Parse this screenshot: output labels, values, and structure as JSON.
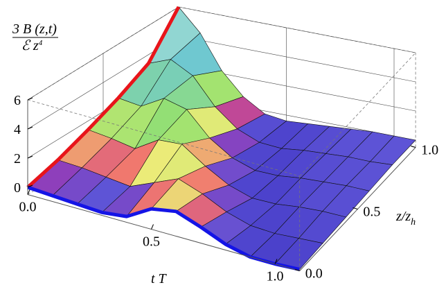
{
  "chart_data": {
    "type": "surface",
    "x": [
      0,
      0.1,
      0.2,
      0.3,
      0.4,
      0.5,
      0.6,
      0.7,
      0.8,
      0.9,
      1.0,
      1.1
    ],
    "y": [
      0,
      0.2,
      0.4,
      0.6,
      0.8,
      1.0
    ],
    "values": [
      [
        0,
        -0.1,
        -0.2,
        -0.3,
        -0.1,
        0.9,
        1.2,
        0.6,
        -0.1,
        -0.5,
        -0.5,
        -0.4
      ],
      [
        0.6,
        0.5,
        0.3,
        0.1,
        0.8,
        1.5,
        0.9,
        0.1,
        -0.4,
        -0.5,
        -0.4,
        -0.3
      ],
      [
        1.4,
        1.2,
        0.9,
        1.9,
        2.0,
        0.9,
        0.0,
        -0.5,
        -0.5,
        -0.3,
        -0.2,
        -0.2
      ],
      [
        2.3,
        2.1,
        3.0,
        2.6,
        1.0,
        0.0,
        -0.5,
        -0.5,
        -0.3,
        -0.2,
        -0.1,
        -0.1
      ],
      [
        3.4,
        4.0,
        3.2,
        1.4,
        0.2,
        -0.4,
        -0.5,
        -0.3,
        -0.2,
        -0.1,
        -0.1,
        0
      ],
      [
        6,
        4.5,
        2.2,
        0.7,
        -0.2,
        -0.4,
        -0.3,
        -0.2,
        -0.1,
        0,
        0,
        0
      ]
    ],
    "xlabel": "t T",
    "ylabel": {
      "text": "z/z",
      "sub": "h"
    },
    "zlabel": {
      "numerator": "3 B (z,t)",
      "denominator": "ℰ z",
      "denominator_sup": "4"
    },
    "xlim": [
      0,
      1.1
    ],
    "ylim": [
      0,
      1
    ],
    "zlim": [
      -0.5,
      6
    ],
    "xticks": [
      {
        "value": 0,
        "label": "0.0"
      },
      {
        "value": 0.5,
        "label": "0.5"
      },
      {
        "value": 1,
        "label": "1.0"
      }
    ],
    "yticks": [
      {
        "value": 0,
        "label": "0.0"
      },
      {
        "value": 0.5,
        "label": "0.5"
      },
      {
        "value": 1,
        "label": "1.0"
      }
    ],
    "zticks": [
      0,
      2,
      4,
      6
    ],
    "mesh": true,
    "grid": true,
    "edge_x0_color": "#e8141a",
    "edge_y0_color": "#1414e6"
  }
}
